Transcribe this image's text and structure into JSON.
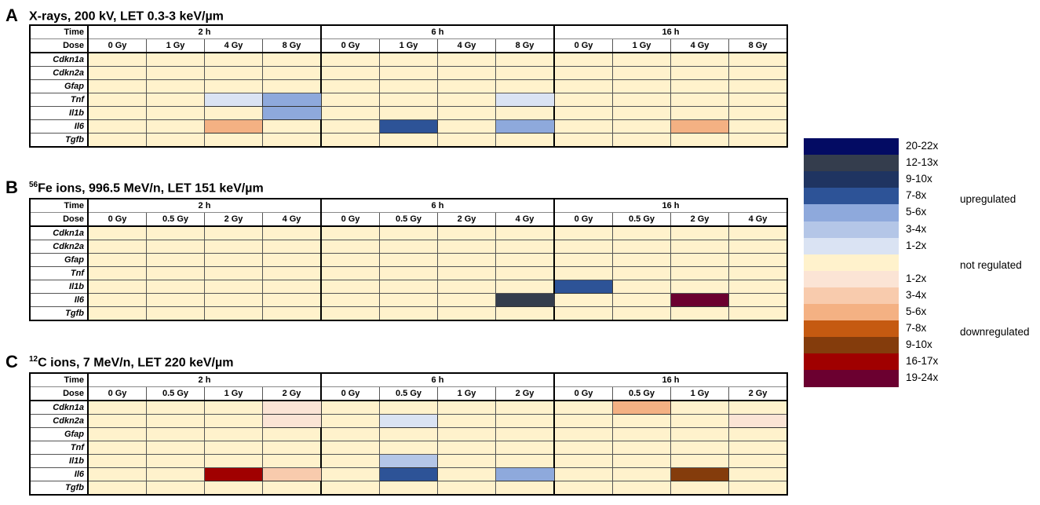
{
  "panels": [
    {
      "letter": "A",
      "title": "X-rays, 200 kV, LET 0.3-3 keV/µm",
      "iso": "",
      "time_label": "Time",
      "dose_label": "Dose",
      "times": [
        "2 h",
        "6 h",
        "16 h"
      ],
      "doses": [
        "0 Gy",
        "1 Gy",
        "4 Gy",
        "8  Gy",
        "0 Gy",
        "1 Gy",
        "4 Gy",
        "8 Gy",
        "0 Gy",
        "1 Gy",
        "4 Gy",
        "8  Gy"
      ],
      "genes": [
        "Cdkn1a",
        "Cdkn2a",
        "Gfap",
        "Tnf",
        "Il1b",
        "Il6",
        "Tgfb"
      ],
      "levels": [
        [
          0,
          0,
          0,
          0,
          0,
          0,
          0,
          0,
          0,
          0,
          0,
          0
        ],
        [
          0,
          0,
          0,
          0,
          0,
          0,
          0,
          0,
          0,
          0,
          0,
          0
        ],
        [
          0,
          0,
          0,
          0,
          0,
          0,
          0,
          0,
          0,
          0,
          0,
          0
        ],
        [
          0,
          0,
          1,
          3,
          0,
          0,
          0,
          1,
          0,
          0,
          0,
          0
        ],
        [
          0,
          0,
          0,
          3,
          0,
          0,
          0,
          0,
          0,
          0,
          0,
          0
        ],
        [
          0,
          0,
          -3,
          0,
          0,
          4,
          0,
          3,
          0,
          0,
          -3,
          0
        ],
        [
          0,
          0,
          0,
          0,
          0,
          0,
          0,
          0,
          0,
          0,
          0,
          0
        ]
      ]
    },
    {
      "letter": "B",
      "title": "Fe ions, 996.5 MeV/n, LET 151 keV/µm",
      "iso": "56",
      "time_label": "Time",
      "dose_label": "Dose",
      "times": [
        "2 h",
        "6 h",
        "16 h"
      ],
      "doses": [
        "0 Gy",
        "0.5 Gy",
        "2 Gy",
        "4 Gy",
        "0 Gy",
        "0.5 Gy",
        "2 Gy",
        "4 Gy",
        "0 Gy",
        "0.5 Gy",
        "2 Gy",
        "4 Gy"
      ],
      "genes": [
        "Cdkn1a",
        "Cdkn2a",
        "Gfap",
        "Tnf",
        "Il1b",
        "Il6",
        "Tgfb"
      ],
      "levels": [
        [
          0,
          0,
          0,
          0,
          0,
          0,
          0,
          0,
          0,
          0,
          0,
          0
        ],
        [
          0,
          0,
          0,
          0,
          0,
          0,
          0,
          0,
          0,
          0,
          0,
          0
        ],
        [
          0,
          0,
          0,
          0,
          0,
          0,
          0,
          0,
          0,
          0,
          0,
          0
        ],
        [
          0,
          0,
          0,
          0,
          0,
          0,
          0,
          0,
          0,
          0,
          0,
          0
        ],
        [
          0,
          0,
          0,
          0,
          0,
          0,
          0,
          0,
          4,
          0,
          0,
          0
        ],
        [
          0,
          0,
          0,
          0,
          0,
          0,
          0,
          6,
          0,
          0,
          -7,
          0
        ],
        [
          0,
          0,
          0,
          0,
          0,
          0,
          0,
          0,
          0,
          0,
          0,
          0
        ]
      ]
    },
    {
      "letter": "C",
      "title": "C ions, 7 MeV/n, LET 220 keV/µm",
      "iso": "12",
      "time_label": "Time",
      "dose_label": "Dose",
      "times": [
        "2 h",
        "6 h",
        "16 h"
      ],
      "doses": [
        "0 Gy",
        "0.5 Gy",
        "1 Gy",
        "2 Gy",
        "0 Gy",
        "0.5 Gy",
        "1 Gy",
        "2 Gy",
        "0 Gy",
        "0.5 Gy",
        "1 Gy",
        "2 Gy"
      ],
      "genes": [
        "Cdkn1a",
        "Cdkn2a",
        "Gfap",
        "Tnf",
        "Il1b",
        "Il6",
        "Tgfb"
      ],
      "levels": [
        [
          0,
          0,
          0,
          -1,
          0,
          0,
          0,
          0,
          0,
          -3,
          0,
          0
        ],
        [
          0,
          0,
          0,
          -1,
          0,
          1,
          0,
          0,
          0,
          0,
          0,
          -1
        ],
        [
          0,
          0,
          0,
          0,
          0,
          0,
          0,
          0,
          0,
          0,
          0,
          0
        ],
        [
          0,
          0,
          0,
          0,
          0,
          0,
          0,
          0,
          0,
          0,
          0,
          0
        ],
        [
          0,
          0,
          0,
          0,
          0,
          2,
          0,
          0,
          0,
          0,
          0,
          0
        ],
        [
          0,
          0,
          -6,
          -2,
          0,
          4,
          0,
          3,
          0,
          0,
          -5,
          0
        ],
        [
          0,
          0,
          0,
          0,
          0,
          0,
          0,
          0,
          0,
          0,
          0,
          0
        ]
      ]
    }
  ],
  "legend": {
    "entries": [
      {
        "label": "20-22x",
        "level": 7
      },
      {
        "label": "12-13x",
        "level": 6
      },
      {
        "label": "9-10x",
        "level": 5
      },
      {
        "label": "7-8x",
        "level": 4
      },
      {
        "label": "5-6x",
        "level": 3
      },
      {
        "label": "3-4x",
        "level": 2
      },
      {
        "label": "1-2x",
        "level": 1
      },
      {
        "label": "",
        "level": 0
      },
      {
        "label": "1-2x",
        "level": -1
      },
      {
        "label": "3-4x",
        "level": -2
      },
      {
        "label": "5-6x",
        "level": -3
      },
      {
        "label": "7-8x",
        "level": -4
      },
      {
        "label": "9-10x",
        "level": -5
      },
      {
        "label": "16-17x",
        "level": -6
      },
      {
        "label": "19-24x",
        "level": -7
      }
    ],
    "upregulated_label": "upregulated",
    "not_regulated_label": "not regulated",
    "downregulated_label": "downregulated"
  },
  "colors": {
    "7": "#030b63",
    "6": "#343d4d",
    "5": "#1f3461",
    "4": "#2d5397",
    "3": "#8ea9dc",
    "2": "#b4c6e7",
    "1": "#dae3f3",
    "0": "#fff2cc",
    "-1": "#fbe4d5",
    "-2": "#f8cbad",
    "-3": "#f4b183",
    "-4": "#c55a11",
    "-5": "#843c0c",
    "-6": "#a00000",
    "-7": "#6b0030"
  },
  "chart_data": {
    "type": "heatmap",
    "title": "",
    "panels": [
      {
        "panel": "A",
        "title": "X-rays, 200 kV, LET 0.3-3 keV/µm",
        "x_groups": [
          "2 h",
          "6 h",
          "16 h"
        ],
        "x": [
          "0 Gy",
          "1 Gy",
          "4 Gy",
          "8 Gy",
          "0 Gy",
          "1 Gy",
          "4 Gy",
          "8 Gy",
          "0 Gy",
          "1 Gy",
          "4 Gy",
          "8 Gy"
        ],
        "y": [
          "Cdkn1a",
          "Cdkn2a",
          "Gfap",
          "Tnf",
          "Il1b",
          "Il6",
          "Tgfb"
        ],
        "values": [
          [
            "not regulated",
            "not regulated",
            "not regulated",
            "not regulated",
            "not regulated",
            "not regulated",
            "not regulated",
            "not regulated",
            "not regulated",
            "not regulated",
            "not regulated",
            "not regulated"
          ],
          [
            "not regulated",
            "not regulated",
            "not regulated",
            "not regulated",
            "not regulated",
            "not regulated",
            "not regulated",
            "not regulated",
            "not regulated",
            "not regulated",
            "not regulated",
            "not regulated"
          ],
          [
            "not regulated",
            "not regulated",
            "not regulated",
            "not regulated",
            "not regulated",
            "not regulated",
            "not regulated",
            "not regulated",
            "not regulated",
            "not regulated",
            "not regulated",
            "not regulated"
          ],
          [
            "not regulated",
            "not regulated",
            "up 1-2x",
            "up 3-4x",
            "not regulated",
            "not regulated",
            "not regulated",
            "up 1-2x",
            "not regulated",
            "not regulated",
            "not regulated",
            "not regulated"
          ],
          [
            "not regulated",
            "not regulated",
            "not regulated",
            "up 3-4x",
            "not regulated",
            "not regulated",
            "not regulated",
            "not regulated",
            "not regulated",
            "not regulated",
            "not regulated",
            "not regulated"
          ],
          [
            "not regulated",
            "not regulated",
            "down 5-6x",
            "not regulated",
            "not regulated",
            "up 7-8x",
            "not regulated",
            "up 5-6x",
            "not regulated",
            "not regulated",
            "down 5-6x",
            "not regulated"
          ],
          [
            "not regulated",
            "not regulated",
            "not regulated",
            "not regulated",
            "not regulated",
            "not regulated",
            "not regulated",
            "not regulated",
            "not regulated",
            "not regulated",
            "not regulated",
            "not regulated"
          ]
        ]
      },
      {
        "panel": "B",
        "title": "56Fe ions, 996.5 MeV/n, LET 151 keV/µm",
        "x_groups": [
          "2 h",
          "6 h",
          "16 h"
        ],
        "x": [
          "0 Gy",
          "0.5 Gy",
          "2 Gy",
          "4 Gy",
          "0 Gy",
          "0.5 Gy",
          "2 Gy",
          "4 Gy",
          "0 Gy",
          "0.5 Gy",
          "2 Gy",
          "4 Gy"
        ],
        "y": [
          "Cdkn1a",
          "Cdkn2a",
          "Gfap",
          "Tnf",
          "Il1b",
          "Il6",
          "Tgfb"
        ],
        "values": [
          [
            "not regulated",
            "not regulated",
            "not regulated",
            "not regulated",
            "not regulated",
            "not regulated",
            "not regulated",
            "not regulated",
            "not regulated",
            "not regulated",
            "not regulated",
            "not regulated"
          ],
          [
            "not regulated",
            "not regulated",
            "not regulated",
            "not regulated",
            "not regulated",
            "not regulated",
            "not regulated",
            "not regulated",
            "not regulated",
            "not regulated",
            "not regulated",
            "not regulated"
          ],
          [
            "not regulated",
            "not regulated",
            "not regulated",
            "not regulated",
            "not regulated",
            "not regulated",
            "not regulated",
            "not regulated",
            "not regulated",
            "not regulated",
            "not regulated",
            "not regulated"
          ],
          [
            "not regulated",
            "not regulated",
            "not regulated",
            "not regulated",
            "not regulated",
            "not regulated",
            "not regulated",
            "not regulated",
            "not regulated",
            "not regulated",
            "not regulated",
            "not regulated"
          ],
          [
            "not regulated",
            "not regulated",
            "not regulated",
            "not regulated",
            "not regulated",
            "not regulated",
            "not regulated",
            "not regulated",
            "up 7-8x",
            "not regulated",
            "not regulated",
            "not regulated"
          ],
          [
            "not regulated",
            "not regulated",
            "not regulated",
            "not regulated",
            "not regulated",
            "not regulated",
            "not regulated",
            "up 12-13x",
            "not regulated",
            "not regulated",
            "down 19-24x",
            "not regulated"
          ],
          [
            "not regulated",
            "not regulated",
            "not regulated",
            "not regulated",
            "not regulated",
            "not regulated",
            "not regulated",
            "not regulated",
            "not regulated",
            "not regulated",
            "not regulated",
            "not regulated"
          ]
        ]
      },
      {
        "panel": "C",
        "title": "12C ions, 7 MeV/n, LET 220 keV/µm",
        "x_groups": [
          "2 h",
          "6 h",
          "16 h"
        ],
        "x": [
          "0 Gy",
          "0.5 Gy",
          "1 Gy",
          "2 Gy",
          "0 Gy",
          "0.5 Gy",
          "1 Gy",
          "2 Gy",
          "0 Gy",
          "0.5 Gy",
          "1 Gy",
          "2 Gy"
        ],
        "y": [
          "Cdkn1a",
          "Cdkn2a",
          "Gfap",
          "Tnf",
          "Il1b",
          "Il6",
          "Tgfb"
        ],
        "values": [
          [
            "not regulated",
            "not regulated",
            "not regulated",
            "down 1-2x",
            "not regulated",
            "not regulated",
            "not regulated",
            "not regulated",
            "not regulated",
            "down 5-6x",
            "not regulated",
            "not regulated"
          ],
          [
            "not regulated",
            "not regulated",
            "not regulated",
            "down 1-2x",
            "not regulated",
            "up 1-2x",
            "not regulated",
            "not regulated",
            "not regulated",
            "not regulated",
            "not regulated",
            "down 1-2x"
          ],
          [
            "not regulated",
            "not regulated",
            "not regulated",
            "not regulated",
            "not regulated",
            "not regulated",
            "not regulated",
            "not regulated",
            "not regulated",
            "not regulated",
            "not regulated",
            "not regulated"
          ],
          [
            "not regulated",
            "not regulated",
            "not regulated",
            "not regulated",
            "not regulated",
            "not regulated",
            "not regulated",
            "not regulated",
            "not regulated",
            "not regulated",
            "not regulated",
            "not regulated"
          ],
          [
            "not regulated",
            "not regulated",
            "not regulated",
            "not regulated",
            "not regulated",
            "up 3-4x",
            "not regulated",
            "not regulated",
            "not regulated",
            "not regulated",
            "not regulated",
            "not regulated"
          ],
          [
            "not regulated",
            "not regulated",
            "down 16-17x",
            "down 3-4x",
            "not regulated",
            "up 7-8x",
            "not regulated",
            "up 5-6x",
            "not regulated",
            "not regulated",
            "down 9-10x",
            "not regulated"
          ],
          [
            "not regulated",
            "not regulated",
            "not regulated",
            "not regulated",
            "not regulated",
            "not regulated",
            "not regulated",
            "not regulated",
            "not regulated",
            "not regulated",
            "not regulated",
            "not regulated"
          ]
        ]
      }
    ],
    "legend_placement": "right"
  }
}
